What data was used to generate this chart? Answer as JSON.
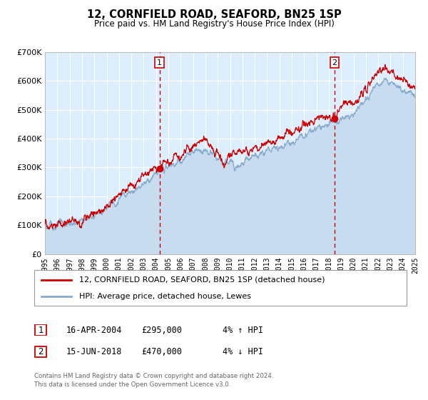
{
  "title": "12, CORNFIELD ROAD, SEAFORD, BN25 1SP",
  "subtitle": "Price paid vs. HM Land Registry's House Price Index (HPI)",
  "xlim": [
    1995,
    2025
  ],
  "ylim": [
    0,
    700000
  ],
  "yticks": [
    0,
    100000,
    200000,
    300000,
    400000,
    500000,
    600000,
    700000
  ],
  "ytick_labels": [
    "£0",
    "£100K",
    "£200K",
    "£300K",
    "£400K",
    "£500K",
    "£600K",
    "£700K"
  ],
  "xticks": [
    1995,
    1996,
    1997,
    1998,
    1999,
    2000,
    2001,
    2002,
    2003,
    2004,
    2005,
    2006,
    2007,
    2008,
    2009,
    2010,
    2011,
    2012,
    2013,
    2014,
    2015,
    2016,
    2017,
    2018,
    2019,
    2020,
    2021,
    2022,
    2023,
    2024,
    2025
  ],
  "plot_bg_color": "#ddeeff",
  "fig_bg_color": "#ffffff",
  "grid_color": "#ffffff",
  "line1_color": "#cc0000",
  "line2_color": "#88aacc",
  "fill_color": "#c8dcf0",
  "sale1_x": 2004.29,
  "sale1_y": 295000,
  "sale2_x": 2018.46,
  "sale2_y": 470000,
  "legend_line1": "12, CORNFIELD ROAD, SEAFORD, BN25 1SP (detached house)",
  "legend_line2": "HPI: Average price, detached house, Lewes",
  "table_row1": [
    "1",
    "16-APR-2004",
    "£295,000",
    "4% ↑ HPI"
  ],
  "table_row2": [
    "2",
    "15-JUN-2018",
    "£470,000",
    "4% ↓ HPI"
  ],
  "footer1": "Contains HM Land Registry data © Crown copyright and database right 2024.",
  "footer2": "This data is licensed under the Open Government Licence v3.0."
}
